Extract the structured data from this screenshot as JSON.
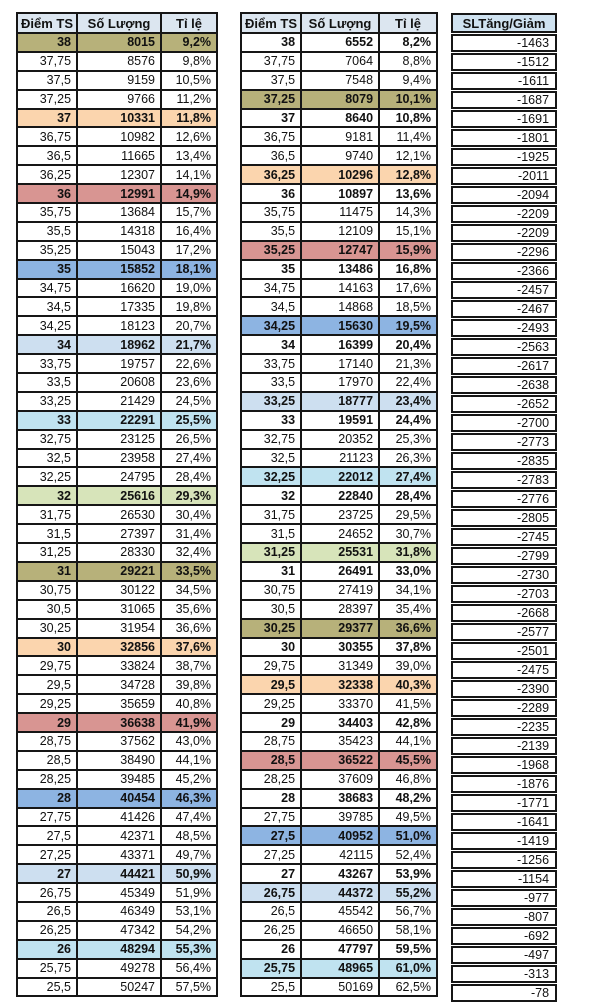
{
  "colors": {
    "olive": "#b7b17a",
    "orange": "#fbd5ae",
    "red": "#d89592",
    "blue": "#8db4e2",
    "pale_blue": "#cddff0",
    "pale_cyan": "#c0e3f0",
    "pale_green": "#d7e4ba",
    "header_bg": "#dce6f0",
    "diff_header_bg": "#cfe2f0",
    "border": "#161616"
  },
  "left_table": {
    "headers": [
      "Điểm TS",
      "Số Lượng",
      "Tỉ lệ"
    ],
    "rows": [
      [
        "38",
        "8015",
        "9,2%",
        "olive",
        1
      ],
      [
        "37,75",
        "8576",
        "9,8%",
        "",
        0
      ],
      [
        "37,5",
        "9159",
        "10,5%",
        "",
        0
      ],
      [
        "37,25",
        "9766",
        "11,2%",
        "",
        0
      ],
      [
        "37",
        "10331",
        "11,8%",
        "orange",
        1
      ],
      [
        "36,75",
        "10982",
        "12,6%",
        "",
        0
      ],
      [
        "36,5",
        "11665",
        "13,4%",
        "",
        0
      ],
      [
        "36,25",
        "12307",
        "14,1%",
        "",
        0
      ],
      [
        "36",
        "12991",
        "14,9%",
        "red",
        1
      ],
      [
        "35,75",
        "13684",
        "15,7%",
        "",
        0
      ],
      [
        "35,5",
        "14318",
        "16,4%",
        "",
        0
      ],
      [
        "35,25",
        "15043",
        "17,2%",
        "",
        0
      ],
      [
        "35",
        "15852",
        "18,1%",
        "blue",
        1
      ],
      [
        "34,75",
        "16620",
        "19,0%",
        "",
        0
      ],
      [
        "34,5",
        "17335",
        "19,8%",
        "",
        0
      ],
      [
        "34,25",
        "18123",
        "20,7%",
        "",
        0
      ],
      [
        "34",
        "18962",
        "21,7%",
        "pale_blue",
        1
      ],
      [
        "33,75",
        "19757",
        "22,6%",
        "",
        0
      ],
      [
        "33,5",
        "20608",
        "23,6%",
        "",
        0
      ],
      [
        "33,25",
        "21429",
        "24,5%",
        "",
        0
      ],
      [
        "33",
        "22291",
        "25,5%",
        "pale_cyan",
        1
      ],
      [
        "32,75",
        "23125",
        "26,5%",
        "",
        0
      ],
      [
        "32,5",
        "23958",
        "27,4%",
        "",
        0
      ],
      [
        "32,25",
        "24795",
        "28,4%",
        "",
        0
      ],
      [
        "32",
        "25616",
        "29,3%",
        "pale_green",
        1
      ],
      [
        "31,75",
        "26530",
        "30,4%",
        "",
        0
      ],
      [
        "31,5",
        "27397",
        "31,4%",
        "",
        0
      ],
      [
        "31,25",
        "28330",
        "32,4%",
        "",
        0
      ],
      [
        "31",
        "29221",
        "33,5%",
        "olive",
        1
      ],
      [
        "30,75",
        "30122",
        "34,5%",
        "",
        0
      ],
      [
        "30,5",
        "31065",
        "35,6%",
        "",
        0
      ],
      [
        "30,25",
        "31954",
        "36,6%",
        "",
        0
      ],
      [
        "30",
        "32856",
        "37,6%",
        "orange",
        1
      ],
      [
        "29,75",
        "33824",
        "38,7%",
        "",
        0
      ],
      [
        "29,5",
        "34728",
        "39,8%",
        "",
        0
      ],
      [
        "29,25",
        "35659",
        "40,8%",
        "",
        0
      ],
      [
        "29",
        "36638",
        "41,9%",
        "red",
        1
      ],
      [
        "28,75",
        "37562",
        "43,0%",
        "",
        0
      ],
      [
        "28,5",
        "38490",
        "44,1%",
        "",
        0
      ],
      [
        "28,25",
        "39485",
        "45,2%",
        "",
        0
      ],
      [
        "28",
        "40454",
        "46,3%",
        "blue",
        1
      ],
      [
        "27,75",
        "41426",
        "47,4%",
        "",
        0
      ],
      [
        "27,5",
        "42371",
        "48,5%",
        "",
        0
      ],
      [
        "27,25",
        "43371",
        "49,7%",
        "",
        0
      ],
      [
        "27",
        "44421",
        "50,9%",
        "pale_blue",
        1
      ],
      [
        "26,75",
        "45349",
        "51,9%",
        "",
        0
      ],
      [
        "26,5",
        "46349",
        "53,1%",
        "",
        0
      ],
      [
        "26,25",
        "47342",
        "54,2%",
        "",
        0
      ],
      [
        "26",
        "48294",
        "55,3%",
        "pale_cyan",
        1
      ],
      [
        "25,75",
        "49278",
        "56,4%",
        "",
        0
      ],
      [
        "25,5",
        "50247",
        "57,5%",
        "",
        0
      ]
    ]
  },
  "middle_table": {
    "headers": [
      "Điểm TS",
      "Số Lượng",
      "Tỉ lệ"
    ],
    "rows": [
      [
        "38",
        "6552",
        "8,2%",
        "",
        1
      ],
      [
        "37,75",
        "7064",
        "8,8%",
        "",
        0
      ],
      [
        "37,5",
        "7548",
        "9,4%",
        "",
        0
      ],
      [
        "37,25",
        "8079",
        "10,1%",
        "olive",
        1
      ],
      [
        "37",
        "8640",
        "10,8%",
        "",
        1
      ],
      [
        "36,75",
        "9181",
        "11,4%",
        "",
        0
      ],
      [
        "36,5",
        "9740",
        "12,1%",
        "",
        0
      ],
      [
        "36,25",
        "10296",
        "12,8%",
        "orange",
        1
      ],
      [
        "36",
        "10897",
        "13,6%",
        "",
        1
      ],
      [
        "35,75",
        "11475",
        "14,3%",
        "",
        0
      ],
      [
        "35,5",
        "12109",
        "15,1%",
        "",
        0
      ],
      [
        "35,25",
        "12747",
        "15,9%",
        "red",
        1
      ],
      [
        "35",
        "13486",
        "16,8%",
        "",
        1
      ],
      [
        "34,75",
        "14163",
        "17,6%",
        "",
        0
      ],
      [
        "34,5",
        "14868",
        "18,5%",
        "",
        0
      ],
      [
        "34,25",
        "15630",
        "19,5%",
        "blue",
        1
      ],
      [
        "34",
        "16399",
        "20,4%",
        "",
        1
      ],
      [
        "33,75",
        "17140",
        "21,3%",
        "",
        0
      ],
      [
        "33,5",
        "17970",
        "22,4%",
        "",
        0
      ],
      [
        "33,25",
        "18777",
        "23,4%",
        "pale_blue",
        1
      ],
      [
        "33",
        "19591",
        "24,4%",
        "",
        1
      ],
      [
        "32,75",
        "20352",
        "25,3%",
        "",
        0
      ],
      [
        "32,5",
        "21123",
        "26,3%",
        "",
        0
      ],
      [
        "32,25",
        "22012",
        "27,4%",
        "pale_cyan",
        1
      ],
      [
        "32",
        "22840",
        "28,4%",
        "",
        1
      ],
      [
        "31,75",
        "23725",
        "29,5%",
        "",
        0
      ],
      [
        "31,5",
        "24652",
        "30,7%",
        "",
        0
      ],
      [
        "31,25",
        "25531",
        "31,8%",
        "pale_green",
        1
      ],
      [
        "31",
        "26491",
        "33,0%",
        "",
        1
      ],
      [
        "30,75",
        "27419",
        "34,1%",
        "",
        0
      ],
      [
        "30,5",
        "28397",
        "35,4%",
        "",
        0
      ],
      [
        "30,25",
        "29377",
        "36,6%",
        "olive",
        1
      ],
      [
        "30",
        "30355",
        "37,8%",
        "",
        1
      ],
      [
        "29,75",
        "31349",
        "39,0%",
        "",
        0
      ],
      [
        "29,5",
        "32338",
        "40,3%",
        "orange",
        1
      ],
      [
        "29,25",
        "33370",
        "41,5%",
        "",
        0
      ],
      [
        "29",
        "34403",
        "42,8%",
        "",
        1
      ],
      [
        "28,75",
        "35423",
        "44,1%",
        "",
        0
      ],
      [
        "28,5",
        "36522",
        "45,5%",
        "red",
        1
      ],
      [
        "28,25",
        "37609",
        "46,8%",
        "",
        0
      ],
      [
        "28",
        "38683",
        "48,2%",
        "",
        1
      ],
      [
        "27,75",
        "39785",
        "49,5%",
        "",
        0
      ],
      [
        "27,5",
        "40952",
        "51,0%",
        "blue",
        1
      ],
      [
        "27,25",
        "42115",
        "52,4%",
        "",
        0
      ],
      [
        "27",
        "43267",
        "53,9%",
        "",
        1
      ],
      [
        "26,75",
        "44372",
        "55,2%",
        "pale_blue",
        1
      ],
      [
        "26,5",
        "45542",
        "56,7%",
        "",
        0
      ],
      [
        "26,25",
        "46650",
        "58,1%",
        "",
        0
      ],
      [
        "26",
        "47797",
        "59,5%",
        "",
        1
      ],
      [
        "25,75",
        "48965",
        "61,0%",
        "pale_cyan",
        1
      ],
      [
        "25,5",
        "50169",
        "62,5%",
        "",
        0
      ]
    ]
  },
  "diff_table": {
    "header": "SLTăng/Giảm",
    "values": [
      "-1463",
      "-1512",
      "-1611",
      "-1687",
      "-1691",
      "-1801",
      "-1925",
      "-2011",
      "-2094",
      "-2209",
      "-2209",
      "-2296",
      "-2366",
      "-2457",
      "-2467",
      "-2493",
      "-2563",
      "-2617",
      "-2638",
      "-2652",
      "-2700",
      "-2773",
      "-2835",
      "-2783",
      "-2776",
      "-2805",
      "-2745",
      "-2799",
      "-2730",
      "-2703",
      "-2668",
      "-2577",
      "-2501",
      "-2475",
      "-2390",
      "-2289",
      "-2235",
      "-2139",
      "-1968",
      "-1876",
      "-1771",
      "-1641",
      "-1419",
      "-1256",
      "-1154",
      "-977",
      "-807",
      "-692",
      "-497",
      "-313",
      "-78"
    ]
  }
}
